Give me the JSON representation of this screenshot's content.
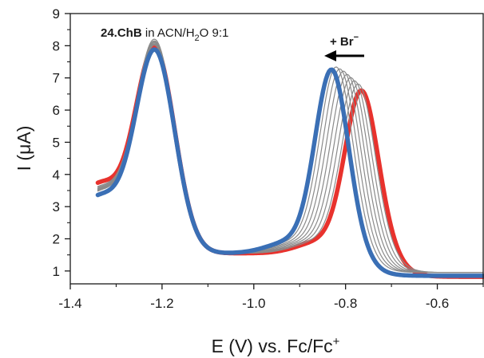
{
  "chart_data": {
    "type": "line",
    "title": "",
    "xlabel": "E (V) vs. Fc/Fc",
    "xlabel_superscript": "+",
    "ylabel": "I (μA)",
    "xlim": [
      -1.4,
      -0.5
    ],
    "ylim": [
      0.6,
      9
    ],
    "xticks": [
      -1.4,
      -1.2,
      -1.0,
      -0.8,
      -0.6
    ],
    "xtick_labels": [
      "-1.4",
      "-1.2",
      "-1.0",
      "-0.8",
      "-0.6"
    ],
    "yticks": [
      1,
      2,
      3,
      4,
      5,
      6,
      7,
      8,
      9
    ],
    "ytick_labels": [
      "1",
      "2",
      "3",
      "4",
      "5",
      "6",
      "7",
      "8",
      "9"
    ],
    "grid": false,
    "annotation": {
      "bold_part": "24.ChB",
      "text_part": " in ACN/H",
      "subscript": "2",
      "text_after": "O 9:1"
    },
    "arrow_label": {
      "text": "+ Br",
      "superscript": "−",
      "direction": "left"
    },
    "series_colors": {
      "initial": "#e8322d",
      "intermediate": "#8a8a8a",
      "final": "#3a6fb5"
    },
    "series": [
      {
        "role": "initial",
        "x0": -1.34,
        "y0": 3.1,
        "p1": {
          "x": -1.215,
          "h": 7.8
        },
        "p2": {
          "x": -0.765,
          "h": 6.55
        },
        "tail": 0.82
      },
      {
        "role": "intermediate",
        "x0": -1.34,
        "y0": 2.98,
        "p1": {
          "x": -1.215,
          "h": 8.05
        },
        "p2": {
          "x": -0.772,
          "h": 6.75
        },
        "tail": 0.95
      },
      {
        "role": "intermediate",
        "x0": -1.34,
        "y0": 2.95,
        "p1": {
          "x": -1.215,
          "h": 8.0
        },
        "p2": {
          "x": -0.78,
          "h": 6.85
        },
        "tail": 0.95
      },
      {
        "role": "intermediate",
        "x0": -1.34,
        "y0": 2.92,
        "p1": {
          "x": -1.215,
          "h": 7.98
        },
        "p2": {
          "x": -0.788,
          "h": 6.95
        },
        "tail": 0.95
      },
      {
        "role": "intermediate",
        "x0": -1.34,
        "y0": 2.9,
        "p1": {
          "x": -1.215,
          "h": 7.95
        },
        "p2": {
          "x": -0.796,
          "h": 7.05
        },
        "tail": 0.95
      },
      {
        "role": "intermediate",
        "x0": -1.34,
        "y0": 2.88,
        "p1": {
          "x": -1.215,
          "h": 7.92
        },
        "p2": {
          "x": -0.804,
          "h": 7.15
        },
        "tail": 0.95
      },
      {
        "role": "intermediate",
        "x0": -1.34,
        "y0": 2.86,
        "p1": {
          "x": -1.215,
          "h": 7.9
        },
        "p2": {
          "x": -0.812,
          "h": 7.22
        },
        "tail": 0.95
      },
      {
        "role": "intermediate",
        "x0": -1.34,
        "y0": 2.84,
        "p1": {
          "x": -1.215,
          "h": 7.88
        },
        "p2": {
          "x": -0.82,
          "h": 7.28
        },
        "tail": 0.95
      },
      {
        "role": "final",
        "x0": -1.34,
        "y0": 2.72,
        "p1": {
          "x": -1.215,
          "h": 7.75
        },
        "p2": {
          "x": -0.83,
          "h": 7.2
        },
        "tail": 0.85
      }
    ]
  }
}
